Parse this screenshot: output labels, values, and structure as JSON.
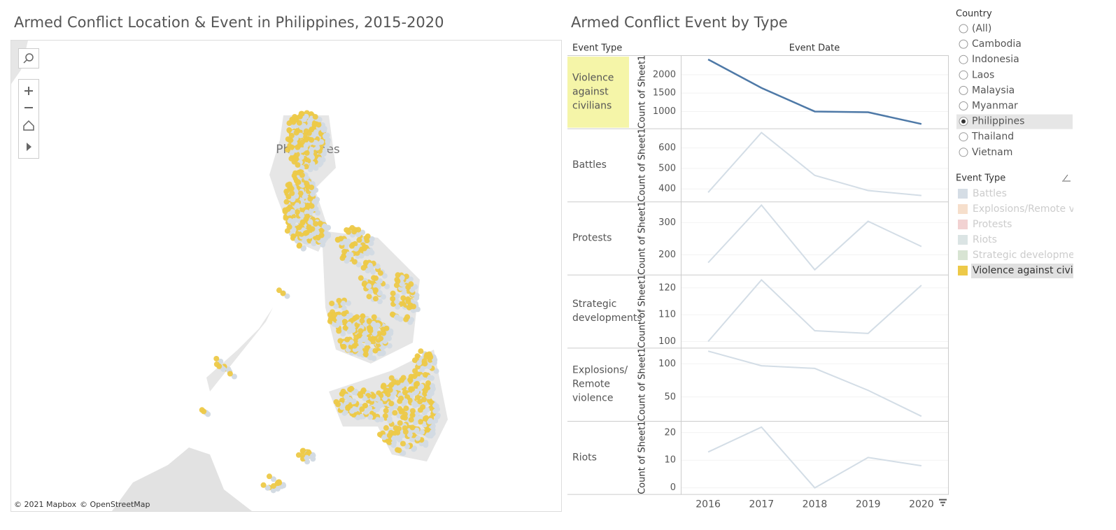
{
  "map": {
    "title": "Armed Conflict Location & Event in Philippines, 2015-2020",
    "label": "Philippines",
    "attribution": [
      "© 2021 Mapbox",
      "© OpenStreetMap"
    ]
  },
  "chart_data": {
    "type": "line",
    "title": "Armed Conflict Event by Type",
    "row_header": "Event Type",
    "x_label": "Event Date",
    "y_label": "Count of Sheet1",
    "x": [
      2016,
      2017,
      2018,
      2019,
      2020
    ],
    "xlim": [
      2015.5,
      2020.5
    ],
    "xticks": [
      2016,
      2017,
      2018,
      2019,
      2020
    ],
    "grid": true,
    "series": [
      {
        "name": "Violence against civilians",
        "color": "#4e79a7",
        "highlight": "#f5f5a8",
        "values": [
          2415,
          1640,
          1000,
          980,
          660
        ],
        "ylim": [
          560,
          2510
        ],
        "yticks": [
          1000,
          1500,
          2000
        ]
      },
      {
        "name": "Battles",
        "color": "#d3dde6",
        "values": [
          383,
          675,
          466,
          392,
          368
        ],
        "ylim": [
          342,
          692
        ],
        "yticks": [
          400,
          500,
          600
        ]
      },
      {
        "name": "Protests",
        "color": "#d3dde6",
        "values": [
          176,
          354,
          154,
          304,
          226
        ],
        "ylim": [
          141,
          363
        ],
        "yticks": [
          200,
          300
        ]
      },
      {
        "name": "Strategic developments",
        "color": "#d3dde6",
        "values": [
          100,
          123,
          104,
          103,
          121
        ],
        "ylim": [
          97.9,
          124.7
        ],
        "yticks": [
          100,
          110,
          120
        ]
      },
      {
        "name": "Explosions/ Remote violence",
        "color": "#d3dde6",
        "values": [
          119,
          97,
          93,
          60,
          21
        ],
        "ylim": [
          15,
          123
        ],
        "yticks": [
          50,
          100
        ]
      },
      {
        "name": "Riots",
        "color": "#d3dde6",
        "values": [
          13,
          22,
          0,
          11,
          8
        ],
        "ylim": [
          -2,
          24
        ],
        "yticks": [
          0,
          10,
          20
        ]
      }
    ]
  },
  "country_filter": {
    "title": "Country",
    "options": [
      "(All)",
      "Cambodia",
      "Indonesia",
      "Laos",
      "Malaysia",
      "Myanmar",
      "Philippines",
      "Thailand",
      "Vietnam"
    ],
    "selected": "Philippines"
  },
  "legend": {
    "title": "Event Type",
    "items": [
      {
        "name": "Battles",
        "color": "#d5dde5"
      },
      {
        "name": "Explosions/Remote violence",
        "color": "#f6dfcc"
      },
      {
        "name": "Protests",
        "color": "#f2d2d2"
      },
      {
        "name": "Riots",
        "color": "#dbe4e4"
      },
      {
        "name": "Strategic developments",
        "color": "#d8e4d3"
      },
      {
        "name": "Violence against civilians",
        "color": "#edc948"
      }
    ],
    "selected": "Violence against civilians"
  }
}
